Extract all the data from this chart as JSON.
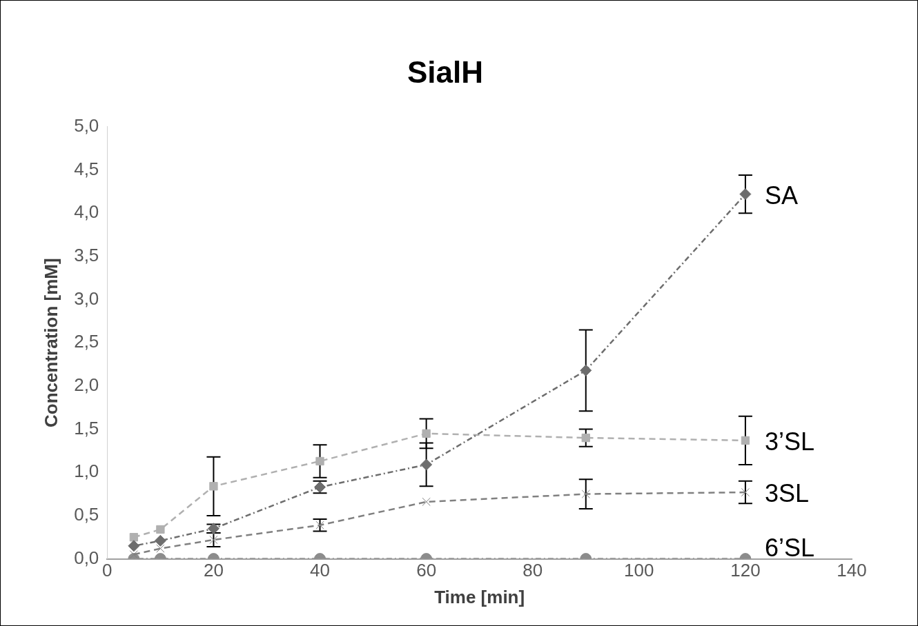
{
  "chart_data": {
    "type": "line",
    "title": "SialH",
    "xlabel": "Time [min]",
    "ylabel": "Concentration [mM]",
    "x": [
      5,
      10,
      20,
      40,
      60,
      90,
      120
    ],
    "series": [
      {
        "name": "SA",
        "color": "#6d6d6d",
        "marker": "diamond",
        "line_style": "dotted",
        "values": [
          0.15,
          0.21,
          0.35,
          0.83,
          1.09,
          2.18,
          4.22
        ],
        "errors": [
          null,
          null,
          0.05,
          0.07,
          0.25,
          0.47,
          0.22
        ]
      },
      {
        "name": "3’SL",
        "color": "#b0b0b0",
        "marker": "square",
        "line_style": "dashed",
        "values": [
          0.25,
          0.34,
          0.84,
          1.13,
          1.45,
          1.4,
          1.37
        ],
        "errors": [
          null,
          null,
          0.34,
          0.19,
          0.17,
          0.1,
          0.28
        ]
      },
      {
        "name": "3SL",
        "color": "#808080",
        "marker": "cross",
        "line_style": "dashed",
        "values": [
          0.05,
          0.12,
          0.22,
          0.39,
          0.66,
          0.75,
          0.77
        ],
        "errors": [
          null,
          null,
          0.08,
          0.07,
          null,
          0.17,
          0.13
        ]
      },
      {
        "name": "6’SL",
        "color": "#8c8c8c",
        "marker": "circle",
        "line_style": "dotted",
        "values": [
          0,
          0,
          0,
          0,
          0,
          0,
          0
        ]
      }
    ],
    "xlim": [
      0,
      140
    ],
    "xticks": [
      0,
      20,
      40,
      60,
      80,
      100,
      120,
      140
    ],
    "ylim": [
      0,
      5
    ],
    "yticks": [
      {
        "value": 0,
        "label": "0,0"
      },
      {
        "value": 0.5,
        "label": "0,5"
      },
      {
        "value": 1,
        "label": "1,0"
      },
      {
        "value": 1.5,
        "label": "1,5"
      },
      {
        "value": 2,
        "label": "2,0"
      },
      {
        "value": 2.5,
        "label": "2,5"
      },
      {
        "value": 3,
        "label": "3,0"
      },
      {
        "value": 3.5,
        "label": "3,5"
      },
      {
        "value": 4,
        "label": "4,0"
      },
      {
        "value": 4.5,
        "label": "4,5"
      },
      {
        "value": 5,
        "label": "5,0"
      }
    ],
    "grid": false,
    "legend": false
  }
}
